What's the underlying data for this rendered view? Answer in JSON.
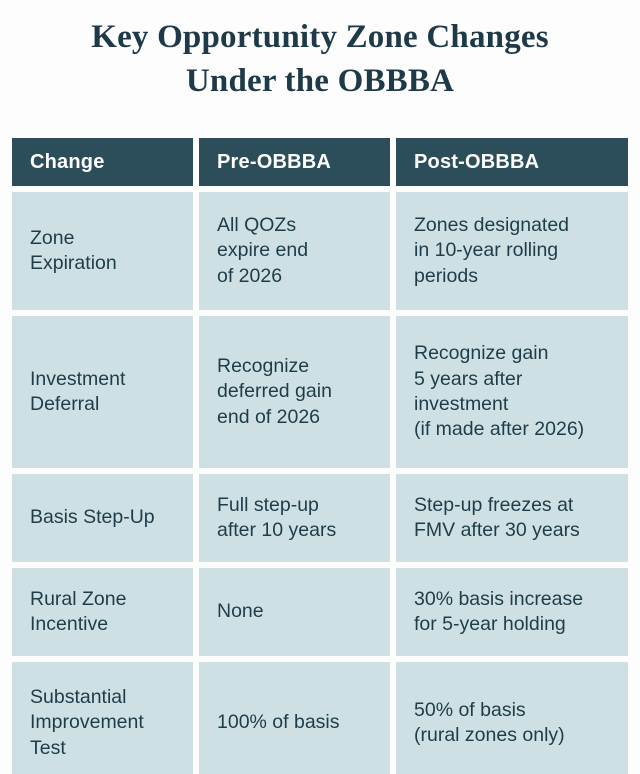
{
  "title": {
    "line1": "Key Opportunity Zone Changes",
    "line2": "Under the OBBBA"
  },
  "table": {
    "headers": {
      "change": "Change",
      "pre": "Pre-OBBBA",
      "post": "Post-OBBBA"
    },
    "rows": [
      {
        "change": "Zone\nExpiration",
        "pre": "All QOZs\nexpire end\nof 2026",
        "post": "Zones designated\nin 10-year rolling\nperiods"
      },
      {
        "change": "Investment\nDeferral",
        "pre": "Recognize\ndeferred gain\nend of 2026",
        "post": "Recognize gain\n5 years after\ninvestment\n(if made after 2026)"
      },
      {
        "change": "Basis Step-Up",
        "pre": "Full step-up\nafter 10 years",
        "post": "Step-up freezes at\nFMV after 30 years"
      },
      {
        "change": "Rural Zone\nIncentive",
        "pre": "None",
        "post": "30% basis increase\nfor 5-year holding"
      },
      {
        "change": "Substantial\nImprovement\nTest",
        "pre": "100% of basis",
        "post": "50% of basis\n(rural zones only)"
      }
    ]
  },
  "colors": {
    "background": "#fdfdfd",
    "title_text": "#1e3a48",
    "header_bg": "#2c4e5a",
    "header_text": "#ffffff",
    "cell_bg": "#cfe0e4",
    "cell_text": "#1e3d49",
    "gutter": "#ffffff"
  }
}
